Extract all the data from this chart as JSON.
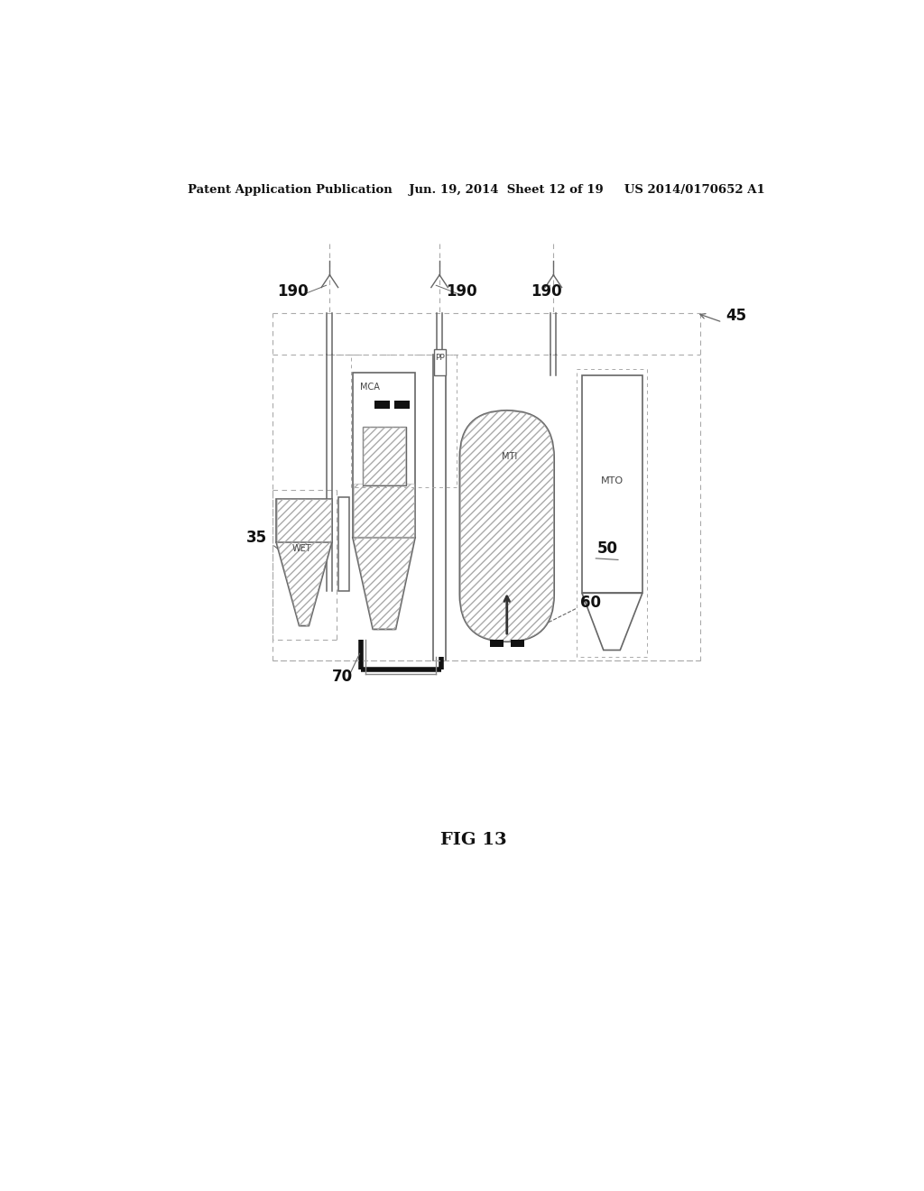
{
  "background_color": "#ffffff",
  "header_text": "Patent Application Publication    Jun. 19, 2014  Sheet 12 of 19     US 2014/0170652 A1",
  "fig_label": "FIG 13",
  "labels": {
    "190a": "190",
    "190b": "190",
    "190c": "190",
    "45": "45",
    "35": "35",
    "50": "50",
    "60": "60",
    "70": "70",
    "wet": "WET",
    "mca": "MCA",
    "mti": "MTI",
    "mto": "MTO",
    "pp": "PP"
  },
  "line_color": "#666666",
  "dark_color": "#111111",
  "hatch_color": "#aaaaaa",
  "dot_color": "#aaaaaa"
}
